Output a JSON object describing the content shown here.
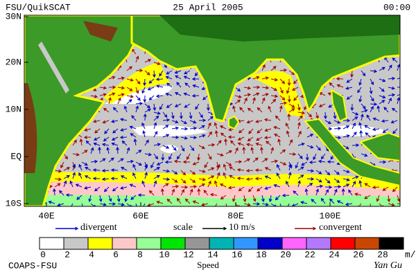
{
  "header": {
    "left": "FSU/QuikSCAT",
    "center": "25 April 2005",
    "right": "00:00"
  },
  "map": {
    "lat_labels": [
      "30N",
      "20N",
      "10N",
      "EQ",
      "10S"
    ],
    "lon_labels": [
      "40E",
      "60E",
      "80E",
      "100E"
    ]
  },
  "legend": {
    "divergent": "divergent",
    "scale": "scale",
    "scale_value": "10 m/s",
    "convergent": "convergent",
    "divergent_color": "#0000c8",
    "convergent_color": "#a00000"
  },
  "colorbar": {
    "ticks": [
      0,
      2,
      4,
      6,
      8,
      10,
      12,
      14,
      16,
      18,
      20,
      22,
      24,
      26,
      28
    ],
    "unit": "m/s",
    "label": "Speed",
    "colors": [
      "#ffffff",
      "#c8c8c8",
      "#ffff00",
      "#ffc8c8",
      "#96ff96",
      "#00e600",
      "#969696",
      "#00b4b4",
      "#3296ff",
      "#0000c8",
      "#ff64ff",
      "#b478ff",
      "#ff0000",
      "#c84600",
      "#000000"
    ]
  },
  "footer": {
    "left": "COAPS-FSU",
    "right": "Yan Gu"
  }
}
